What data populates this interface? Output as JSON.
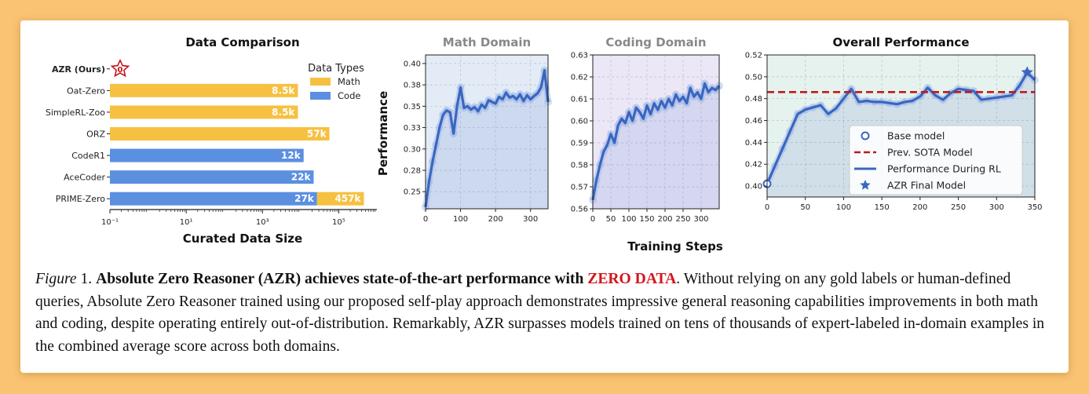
{
  "colors": {
    "math": "#f6c141",
    "code": "#5b8fe0",
    "line": "#3a66c0",
    "sota": "#c0191b",
    "math_bg": "#e3ebf6",
    "coding_bg": "#ece7f6",
    "overall_bg": "#e6f2ee",
    "accent_red": "#d4141c",
    "page_bg": "#f9c372"
  },
  "shared": {
    "ylabel": "Performance",
    "xlabel": "Training Steps"
  },
  "chart_data": [
    {
      "type": "bar",
      "title": "Data Comparison",
      "xlabel": "Curated Data Size",
      "x_scale": "log",
      "xlim": [
        0.1,
        1000000
      ],
      "x_tick_labels": [
        "10⁻¹",
        "10¹",
        "10³",
        "10⁵"
      ],
      "legend": {
        "title": "Data Types",
        "position": "top-right",
        "entries": [
          "Math",
          "Code"
        ]
      },
      "categories": [
        "AZR (Ours)",
        "Oat-Zero",
        "SimpleRL-Zoo",
        "ORZ",
        "CodeR1",
        "AceCoder",
        "PRIME-Zero"
      ],
      "ours_value": 0,
      "ours_label": "0",
      "bars": [
        {
          "category": "Oat-Zero",
          "series": "Math",
          "value": 8500,
          "label": "8.5k"
        },
        {
          "category": "SimpleRL-Zoo",
          "series": "Math",
          "value": 8500,
          "label": "8.5k"
        },
        {
          "category": "ORZ",
          "series": "Math",
          "value": 57000,
          "label": "57k"
        },
        {
          "category": "CodeR1",
          "series": "Code",
          "value": 12000,
          "label": "12k"
        },
        {
          "category": "AceCoder",
          "series": "Code",
          "value": 22000,
          "label": "22k"
        },
        {
          "category": "PRIME-Zero",
          "series": "Code",
          "value": 27000,
          "label": "27k"
        },
        {
          "category": "PRIME-Zero",
          "series": "Math",
          "value": 457000,
          "label": "457k"
        }
      ]
    },
    {
      "type": "line",
      "title": "Math Domain",
      "xlim": [
        0,
        350
      ],
      "ylim": [
        0.23,
        0.41
      ],
      "x_ticks": [
        0,
        100,
        200,
        300
      ],
      "y_ticks": [
        0.25,
        0.275,
        0.3,
        0.325,
        0.35,
        0.375,
        0.4
      ],
      "y_tick_labels": [
        "0.25",
        "0.28",
        "0.30",
        "0.33",
        "0.35",
        "0.38",
        "0.40"
      ],
      "grid": true,
      "x": [
        0,
        10,
        20,
        30,
        40,
        50,
        60,
        70,
        80,
        90,
        100,
        110,
        120,
        130,
        140,
        150,
        160,
        170,
        180,
        190,
        200,
        210,
        220,
        230,
        240,
        250,
        260,
        270,
        280,
        290,
        300,
        310,
        320,
        330,
        340,
        350
      ],
      "y": [
        0.232,
        0.262,
        0.285,
        0.305,
        0.325,
        0.34,
        0.345,
        0.343,
        0.318,
        0.35,
        0.372,
        0.348,
        0.35,
        0.346,
        0.349,
        0.344,
        0.352,
        0.348,
        0.357,
        0.355,
        0.353,
        0.361,
        0.358,
        0.366,
        0.36,
        0.362,
        0.358,
        0.364,
        0.356,
        0.363,
        0.358,
        0.362,
        0.365,
        0.372,
        0.392,
        0.355
      ]
    },
    {
      "type": "line",
      "title": "Coding Domain",
      "xlim": [
        0,
        350
      ],
      "ylim": [
        0.56,
        0.63
      ],
      "x_ticks": [
        0,
        50,
        100,
        150,
        200,
        250,
        300
      ],
      "y_ticks": [
        0.56,
        0.57,
        0.58,
        0.59,
        0.6,
        0.61,
        0.62,
        0.63
      ],
      "y_tick_labels": [
        "0.56",
        "0.57",
        "0.58",
        "0.59",
        "0.60",
        "0.61",
        "0.62",
        "0.63"
      ],
      "grid": true,
      "x": [
        0,
        10,
        20,
        30,
        40,
        50,
        60,
        70,
        80,
        90,
        100,
        110,
        120,
        130,
        140,
        150,
        160,
        170,
        180,
        190,
        200,
        210,
        220,
        230,
        240,
        250,
        260,
        270,
        280,
        290,
        300,
        310,
        320,
        330,
        340,
        350
      ],
      "y": [
        0.564,
        0.573,
        0.58,
        0.586,
        0.589,
        0.594,
        0.59,
        0.598,
        0.601,
        0.599,
        0.604,
        0.6,
        0.606,
        0.604,
        0.601,
        0.607,
        0.603,
        0.608,
        0.605,
        0.609,
        0.606,
        0.61,
        0.607,
        0.612,
        0.609,
        0.611,
        0.608,
        0.615,
        0.611,
        0.613,
        0.61,
        0.617,
        0.613,
        0.615,
        0.614,
        0.616
      ]
    },
    {
      "type": "line",
      "title": "Overall Performance",
      "xlim": [
        0,
        350
      ],
      "ylim": [
        0.39,
        0.52
      ],
      "x_ticks": [
        0,
        50,
        100,
        150,
        200,
        250,
        300,
        350
      ],
      "y_ticks": [
        0.4,
        0.42,
        0.44,
        0.46,
        0.48,
        0.5,
        0.52
      ],
      "y_tick_labels": [
        "0.40",
        "0.42",
        "0.44",
        "0.46",
        "0.48",
        "0.50",
        "0.52"
      ],
      "grid": true,
      "legend": {
        "position": "bottom-right",
        "entries": [
          "Base model",
          "Prev. SOTA Model",
          "Performance During RL",
          "AZR Final Model"
        ]
      },
      "base_model": {
        "x": 0,
        "y": 0.402
      },
      "prev_sota": 0.486,
      "final_model": {
        "x": 340,
        "y": 0.504
      },
      "x": [
        0,
        10,
        20,
        30,
        40,
        50,
        60,
        70,
        80,
        90,
        100,
        110,
        120,
        130,
        140,
        150,
        160,
        170,
        180,
        190,
        200,
        210,
        220,
        230,
        240,
        250,
        260,
        270,
        280,
        290,
        300,
        310,
        320,
        330,
        340,
        350
      ],
      "y": [
        0.402,
        0.418,
        0.434,
        0.45,
        0.466,
        0.47,
        0.472,
        0.474,
        0.466,
        0.471,
        0.48,
        0.489,
        0.477,
        0.478,
        0.477,
        0.477,
        0.476,
        0.475,
        0.477,
        0.478,
        0.482,
        0.49,
        0.483,
        0.479,
        0.485,
        0.489,
        0.488,
        0.487,
        0.479,
        0.48,
        0.481,
        0.482,
        0.483,
        0.492,
        0.504,
        0.497
      ]
    }
  ],
  "caption": {
    "figure_label": "Figure",
    "figure_number": " 1. ",
    "bold_title": "Absolute Zero Reasoner (AZR) achieves state-of-the-art performance with ",
    "red_text": "ZERO DATA",
    "rest": ". Without relying on any gold labels or human-defined queries, Absolute Zero Reasoner trained using our proposed self-play approach demonstrates impressive general reasoning capabilities improvements in both math and coding, despite operating entirely out-of-distribution. Remarkably, AZR surpasses models trained on tens of thousands of expert-labeled in-domain examples in the combined average score across both domains."
  }
}
